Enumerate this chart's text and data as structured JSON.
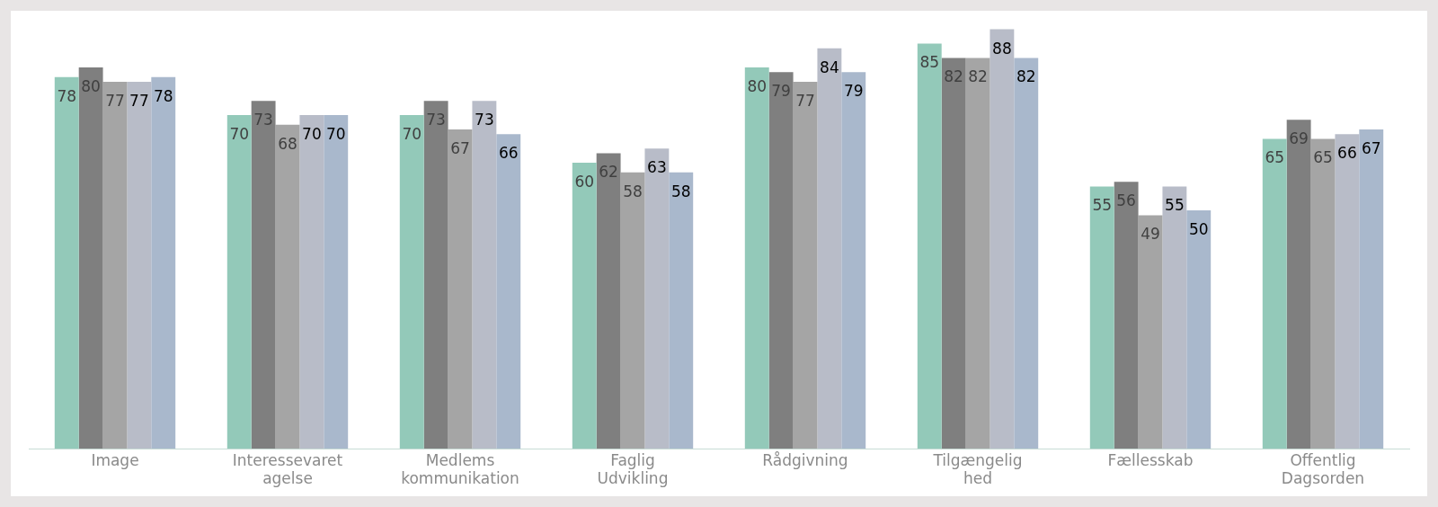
{
  "chart_data": {
    "type": "bar",
    "categories": [
      "Image",
      "Interessevaret agelse",
      "Medlems kommunikation",
      "Faglig Udvikling",
      "Rådgivning",
      "Tilgængelig hed",
      "Fællesskab",
      "Offentlig Dagsorden"
    ],
    "series": [
      {
        "color": "#93c9b9",
        "values": [
          78,
          70,
          70,
          60,
          80,
          85,
          55,
          65
        ]
      },
      {
        "color": "#7f7f7f",
        "values": [
          80,
          73,
          73,
          62,
          79,
          82,
          56,
          69
        ]
      },
      {
        "color": "#a5a5a5",
        "values": [
          77,
          68,
          67,
          58,
          77,
          82,
          49,
          65
        ]
      },
      {
        "color": "#b8bcc8",
        "values": [
          77,
          70,
          73,
          63,
          84,
          88,
          55,
          66
        ]
      },
      {
        "color": "#a9b8cc",
        "values": [
          78,
          70,
          66,
          58,
          79,
          82,
          50,
          67
        ]
      }
    ],
    "data_labels": true,
    "grid": false,
    "legend": false
  }
}
